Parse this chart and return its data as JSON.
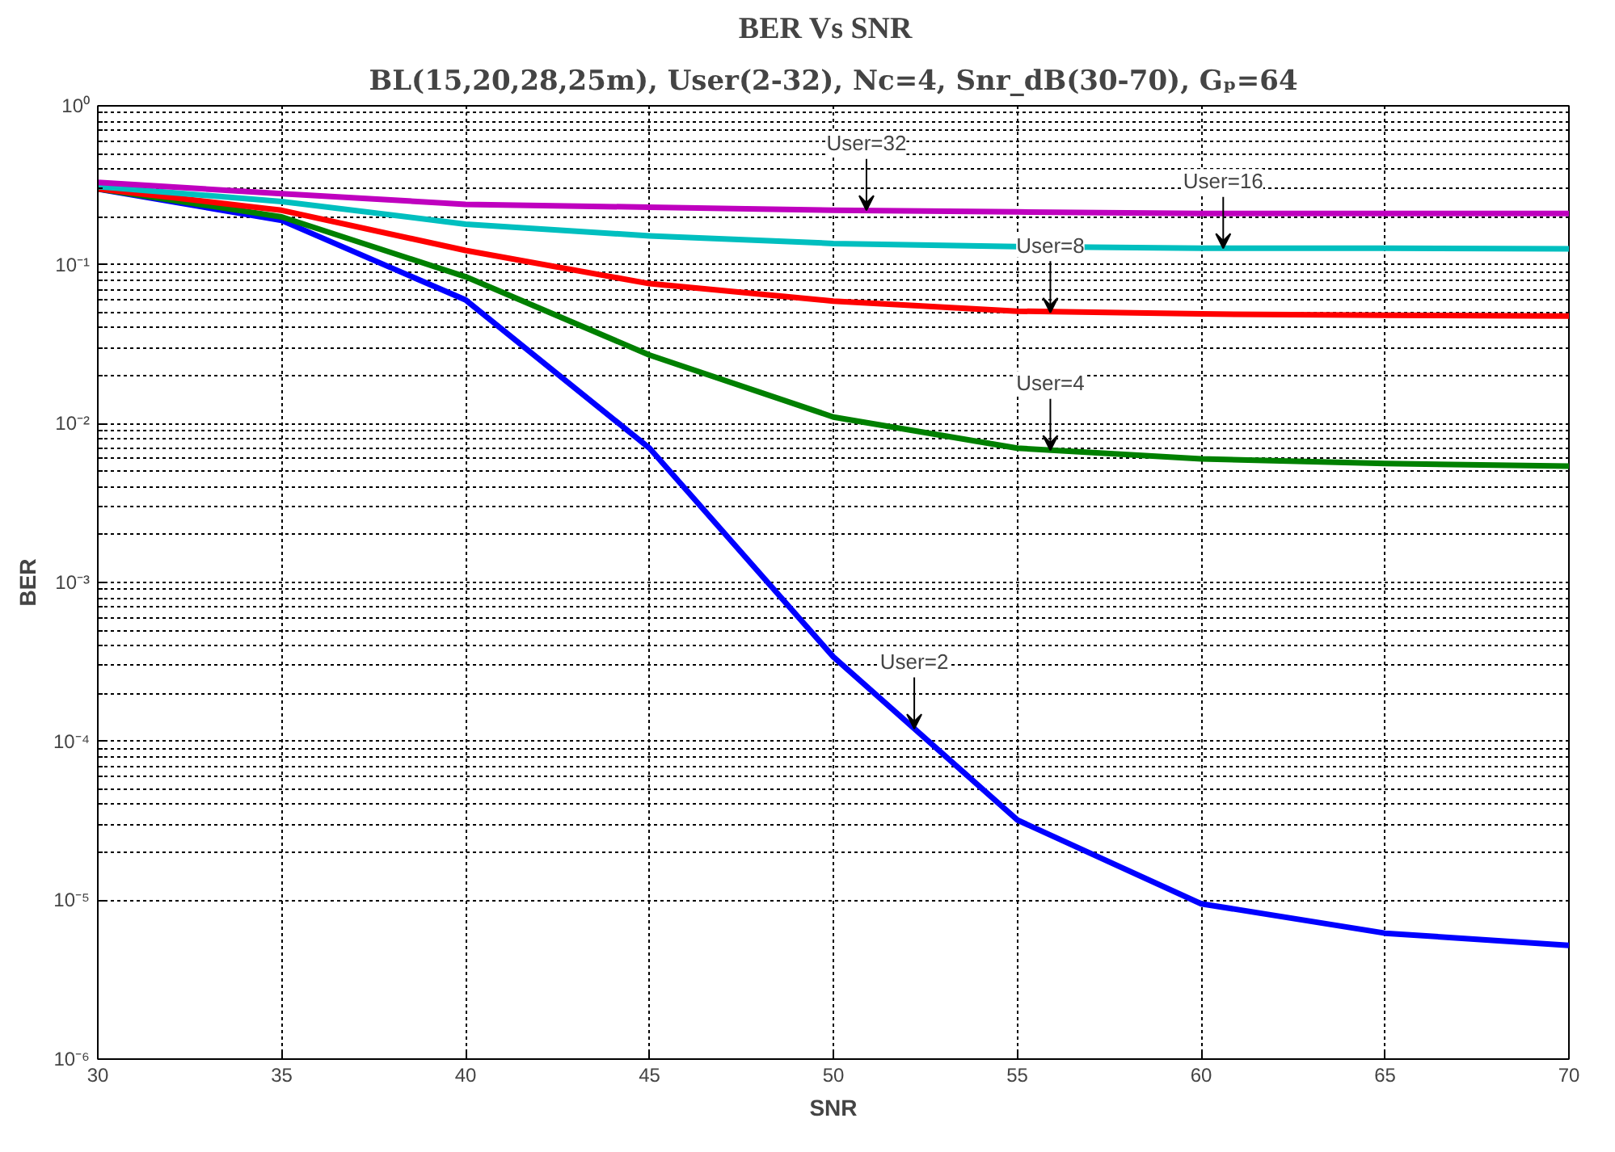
{
  "chart_data": {
    "type": "line",
    "title": "BER  Vs  SNR",
    "subtitle": "BL(15,20,28,25m), User(2-32), Nc=4, Snr_dB(30-70), Gₚ=64",
    "xlabel": "SNR",
    "ylabel": "BER",
    "x": [
      30,
      35,
      40,
      45,
      50,
      55,
      60,
      65,
      70
    ],
    "series": [
      {
        "color": "#0000ff",
        "values": [
          0.3,
          0.19,
          0.06,
          0.007,
          0.00034,
          3.2e-05,
          9.5e-06,
          6.2e-06,
          5.2e-06
        ]
      },
      {
        "color": "#008000",
        "values": [
          0.3,
          0.2,
          0.084,
          0.027,
          0.011,
          0.007,
          0.006,
          0.0056,
          0.0054
        ]
      },
      {
        "color": "#ff0000",
        "values": [
          0.3,
          0.22,
          0.123,
          0.076,
          0.059,
          0.051,
          0.049,
          0.048,
          0.0475
        ]
      },
      {
        "color": "#00bfbf",
        "values": [
          0.31,
          0.25,
          0.18,
          0.152,
          0.136,
          0.13,
          0.127,
          0.127,
          0.126
        ]
      },
      {
        "color": "#bf00bf",
        "values": [
          0.33,
          0.28,
          0.24,
          0.23,
          0.22,
          0.215,
          0.21,
          0.21,
          0.21
        ]
      }
    ],
    "annotations": [
      {
        "text": "User=32",
        "x": 50.9,
        "y": 0.22
      },
      {
        "text": "User=16",
        "x": 60.6,
        "y": 0.127
      },
      {
        "text": "User=8",
        "x": 55.9,
        "y": 0.05
      },
      {
        "text": "User=4",
        "x": 55.9,
        "y": 0.0068
      },
      {
        "text": "User=2",
        "x": 52.2,
        "y": 0.00012
      }
    ],
    "log": "y",
    "grid": true,
    "line_style": "solid",
    "marker": "none",
    "xlim": [
      30,
      70
    ],
    "ylim": [
      1e-06,
      1
    ],
    "xticks": [
      30,
      35,
      40,
      45,
      50,
      55,
      60,
      65,
      70
    ],
    "yticks": [
      {
        "value": 1e-06,
        "label": "10⁻⁶"
      },
      {
        "value": 1e-05,
        "label": "10⁻⁵"
      },
      {
        "value": 0.0001,
        "label": "10⁻⁴"
      },
      {
        "value": 0.001,
        "label": "10⁻³"
      },
      {
        "value": 0.01,
        "label": "10⁻²"
      },
      {
        "value": 0.1,
        "label": "10⁻¹"
      },
      {
        "value": 1,
        "label": "10⁰"
      }
    ]
  }
}
